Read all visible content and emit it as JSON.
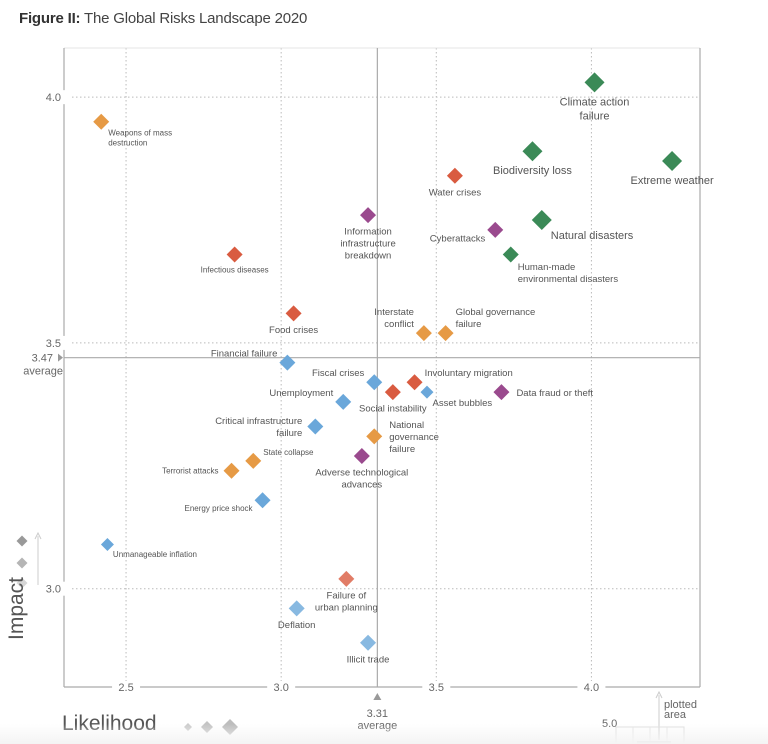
{
  "figure": {
    "title_bold": "Figure II:",
    "title_rest": " The Global Risks Landscape 2020"
  },
  "chart_data": {
    "type": "scatter",
    "title": "The Global Risks Landscape 2020",
    "xlabel": "Likelihood",
    "ylabel": "Impact",
    "xlim": [
      2.3,
      4.35
    ],
    "ylim": [
      2.8,
      4.1
    ],
    "x_ticks": [
      "2.5",
      "3.0",
      "3.5",
      "4.0"
    ],
    "y_ticks": [
      "3.0",
      "3.5",
      "4.0"
    ],
    "x_average": {
      "value": "3.31",
      "label": "average"
    },
    "y_average": {
      "value": "3.47",
      "label": "average"
    },
    "grid": "dotted at major ticks",
    "category_colors": {
      "environmental": "#3b8a57",
      "societal": "#d95b40",
      "technological": "#9a4a8e",
      "geopolitical": "#e69a45",
      "economic": "#6aa7da"
    },
    "points": [
      {
        "name": "Weapons of mass destruction",
        "lines": [
          "Weapons of mass",
          "destruction"
        ],
        "x": 2.42,
        "y": 3.95,
        "cat": "geopolitical",
        "size": "m",
        "anchor": "right-below",
        "small": true
      },
      {
        "name": "Infectious diseases",
        "lines": [
          "Infectious diseases"
        ],
        "x": 2.85,
        "y": 3.68,
        "cat": "societal",
        "size": "m",
        "anchor": "below",
        "small": true
      },
      {
        "name": "Climate action failure",
        "lines": [
          "Climate action",
          "failure"
        ],
        "x": 4.01,
        "y": 4.03,
        "cat": "environmental",
        "size": "l",
        "anchor": "below"
      },
      {
        "name": "Biodiversity loss",
        "lines": [
          "Biodiversity loss"
        ],
        "x": 3.81,
        "y": 3.89,
        "cat": "environmental",
        "size": "l",
        "anchor": "below"
      },
      {
        "name": "Extreme weather",
        "lines": [
          "Extreme weather"
        ],
        "x": 4.26,
        "y": 3.87,
        "cat": "environmental",
        "size": "l",
        "anchor": "below"
      },
      {
        "name": "Water crises",
        "lines": [
          "Water crises"
        ],
        "x": 3.56,
        "y": 3.84,
        "cat": "societal",
        "size": "m",
        "anchor": "below"
      },
      {
        "name": "Information infrastructure breakdown",
        "lines": [
          "Information",
          "infrastructure",
          "breakdown"
        ],
        "x": 3.28,
        "y": 3.76,
        "cat": "technological",
        "size": "m",
        "anchor": "below"
      },
      {
        "name": "Cyberattacks",
        "lines": [
          "Cyberattacks"
        ],
        "x": 3.69,
        "y": 3.73,
        "cat": "technological",
        "size": "m",
        "anchor": "left-below"
      },
      {
        "name": "Natural disasters",
        "lines": [
          "Natural disasters"
        ],
        "x": 3.84,
        "y": 3.75,
        "cat": "environmental",
        "size": "l",
        "anchor": "right-below"
      },
      {
        "name": "Human-made environmental disasters",
        "lines": [
          "Human-made",
          "environmental disasters"
        ],
        "x": 3.74,
        "y": 3.68,
        "cat": "environmental",
        "size": "m",
        "anchor": "right-below"
      },
      {
        "name": "Food crises",
        "lines": [
          "Food crises"
        ],
        "x": 3.04,
        "y": 3.56,
        "cat": "societal",
        "size": "m",
        "anchor": "below"
      },
      {
        "name": "Interstate conflict",
        "lines": [
          "Interstate",
          "conflict"
        ],
        "x": 3.46,
        "y": 3.52,
        "cat": "geopolitical",
        "size": "m",
        "anchor": "left-above"
      },
      {
        "name": "Global governance failure",
        "lines": [
          "Global governance",
          "failure"
        ],
        "x": 3.53,
        "y": 3.52,
        "cat": "geopolitical",
        "size": "m",
        "anchor": "right-above"
      },
      {
        "name": "Financial failure",
        "lines": [
          "Financial failure"
        ],
        "x": 3.02,
        "y": 3.46,
        "cat": "economic",
        "size": "m",
        "anchor": "left-above"
      },
      {
        "name": "Fiscal crises",
        "lines": [
          "Fiscal crises"
        ],
        "x": 3.3,
        "y": 3.42,
        "cat": "economic",
        "size": "m",
        "anchor": "left-above"
      },
      {
        "name": "Involuntary migration",
        "lines": [
          "Involuntary migration"
        ],
        "x": 3.43,
        "y": 3.42,
        "cat": "societal",
        "size": "m",
        "anchor": "right-above"
      },
      {
        "name": "Social instability",
        "lines": [
          "Social instability"
        ],
        "x": 3.36,
        "y": 3.4,
        "cat": "societal",
        "size": "m",
        "anchor": "below"
      },
      {
        "name": "Asset bubbles",
        "lines": [
          "Asset bubbles"
        ],
        "x": 3.47,
        "y": 3.4,
        "cat": "economic",
        "size": "s",
        "anchor": "right-below"
      },
      {
        "name": "Data fraud or theft",
        "lines": [
          "Data fraud or theft"
        ],
        "x": 3.71,
        "y": 3.4,
        "cat": "technological",
        "size": "m",
        "anchor": "right"
      },
      {
        "name": "Unemployment",
        "lines": [
          "Unemployment"
        ],
        "x": 3.2,
        "y": 3.38,
        "cat": "economic",
        "size": "m",
        "anchor": "left-above"
      },
      {
        "name": "Critical infrastructure failure",
        "lines": [
          "Critical infrastructure",
          "failure"
        ],
        "x": 3.11,
        "y": 3.33,
        "cat": "economic",
        "size": "m",
        "anchor": "left"
      },
      {
        "name": "National governance failure",
        "lines": [
          "National",
          "governance",
          "failure"
        ],
        "x": 3.3,
        "y": 3.31,
        "cat": "geopolitical",
        "size": "m",
        "anchor": "right"
      },
      {
        "name": "Adverse technological advances",
        "lines": [
          "Adverse technological",
          "advances"
        ],
        "x": 3.26,
        "y": 3.27,
        "cat": "technological",
        "size": "m",
        "anchor": "below"
      },
      {
        "name": "State collapse",
        "lines": [
          "State collapse"
        ],
        "x": 2.91,
        "y": 3.26,
        "cat": "geopolitical",
        "size": "m",
        "anchor": "right-above",
        "small": true
      },
      {
        "name": "Terrorist attacks",
        "lines": [
          "Terrorist attacks"
        ],
        "x": 2.84,
        "y": 3.24,
        "cat": "geopolitical",
        "size": "m",
        "anchor": "left",
        "small": true
      },
      {
        "name": "Energy price shock",
        "lines": [
          "Energy price shock"
        ],
        "x": 2.94,
        "y": 3.18,
        "cat": "economic",
        "size": "m",
        "anchor": "left-below",
        "small": true
      },
      {
        "name": "Unmanageable inflation",
        "lines": [
          "Unmanageable inflation"
        ],
        "x": 2.44,
        "y": 3.09,
        "cat": "economic",
        "size": "s",
        "anchor": "right-below",
        "small": true
      },
      {
        "name": "Failure of urban planning",
        "lines": [
          "Failure of",
          "urban planning"
        ],
        "x": 3.21,
        "y": 3.02,
        "cat": "societal",
        "size": "m",
        "anchor": "below",
        "light": true
      },
      {
        "name": "Deflation",
        "lines": [
          "Deflation"
        ],
        "x": 3.05,
        "y": 2.96,
        "cat": "economic",
        "size": "m",
        "anchor": "below",
        "light": true
      },
      {
        "name": "Illicit trade",
        "lines": [
          "Illicit trade"
        ],
        "x": 3.28,
        "y": 2.89,
        "cat": "economic",
        "size": "m",
        "anchor": "below",
        "light": true
      }
    ],
    "inset": {
      "tick": "5.0",
      "label_lines": [
        "plotted",
        "area"
      ]
    }
  }
}
